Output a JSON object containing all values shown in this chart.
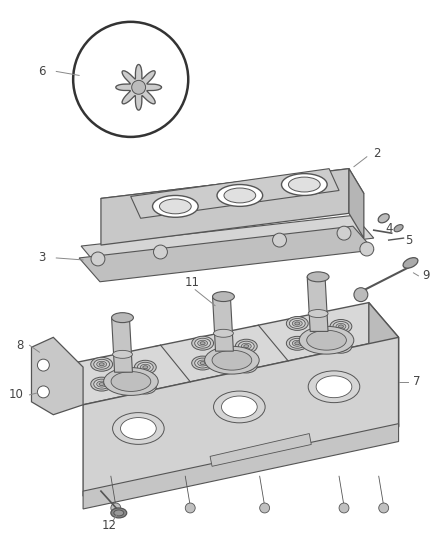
{
  "bg_color": "#ffffff",
  "lc": "#888888",
  "dc": "#555555",
  "fc_light": "#e8e8e8",
  "fc_mid": "#d0d0d0",
  "fc_dark": "#b8b8b8",
  "fc_darker": "#a0a0a0",
  "label_fs": 8.5,
  "label_color": "#444444"
}
